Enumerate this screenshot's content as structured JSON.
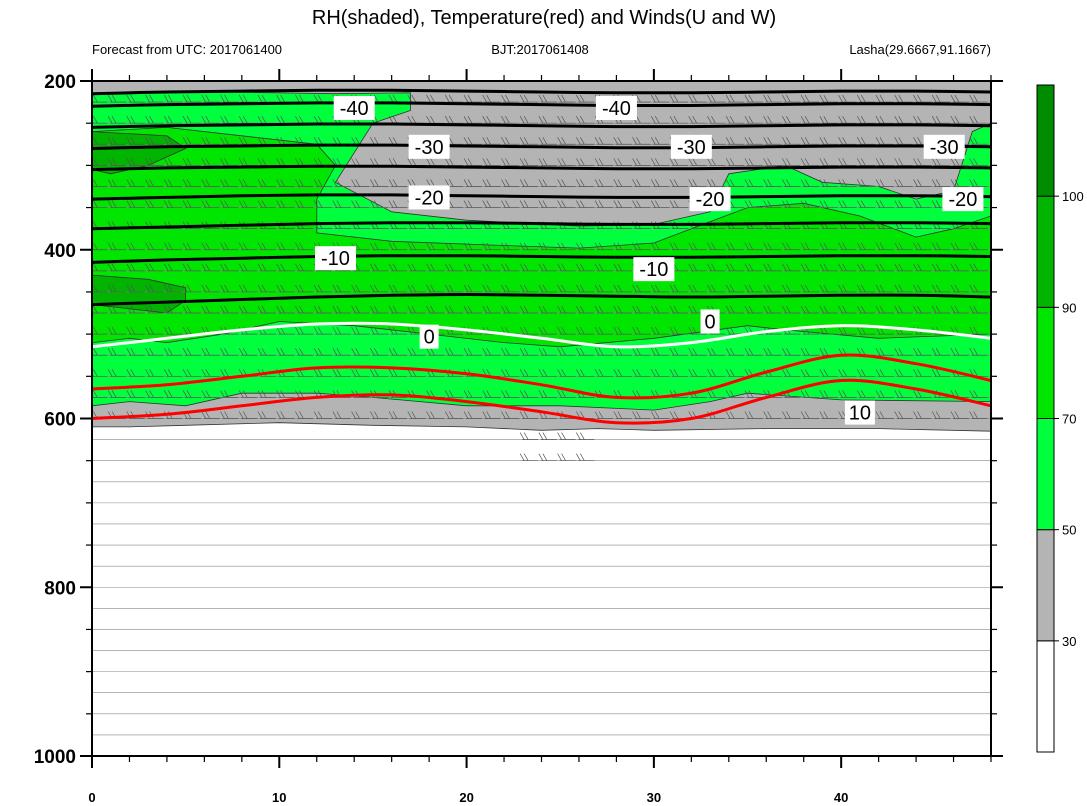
{
  "chart_data": {
    "type": "contour",
    "title": "RH(shaded), Temperature(red) and Winds(U and W)",
    "header_left": "Forecast from UTC: 2017061400",
    "header_center": "BJT:2017061408",
    "header_right": "Lasha(29.6667,91.1667)",
    "x_axis": {
      "range": [
        0,
        48
      ],
      "ticks": [
        "0",
        "10",
        "20",
        "30",
        "40"
      ]
    },
    "y_axis": {
      "range": [
        200,
        1000
      ],
      "reversed": true,
      "ticks": [
        "200",
        "400",
        "600",
        "800",
        "1000"
      ]
    },
    "colorbar": {
      "levels": [
        "30",
        "50",
        "70",
        "90",
        "100"
      ],
      "colors": [
        "#ffffff",
        "#b4b4b4",
        "#00ff3c",
        "#00e600",
        "#00b400",
        "#008c00"
      ]
    },
    "rh_regions": [
      {
        "color": "#b4b4b4",
        "points": [
          [
            0,
            200
          ],
          [
            48,
            200
          ],
          [
            48,
            615
          ],
          [
            42,
            612
          ],
          [
            36,
            612
          ],
          [
            30,
            614
          ],
          [
            27,
            612
          ],
          [
            24,
            614
          ],
          [
            20,
            610
          ],
          [
            15,
            608
          ],
          [
            10,
            605
          ],
          [
            5,
            608
          ],
          [
            2,
            610
          ],
          [
            0,
            610
          ]
        ]
      },
      {
        "color": "#00ff3c",
        "points": [
          [
            0,
            215
          ],
          [
            7,
            213
          ],
          [
            13,
            215
          ],
          [
            17,
            214
          ],
          [
            17,
            235
          ],
          [
            15,
            250
          ],
          [
            13,
            320
          ],
          [
            16,
            355
          ],
          [
            20,
            365
          ],
          [
            26,
            372
          ],
          [
            30,
            370
          ],
          [
            33,
            355
          ],
          [
            34,
            310
          ],
          [
            37,
            300
          ],
          [
            39,
            320
          ],
          [
            42,
            325
          ],
          [
            44,
            340
          ],
          [
            46,
            330
          ],
          [
            47,
            260
          ],
          [
            48,
            250
          ],
          [
            48,
            580
          ],
          [
            40,
            578
          ],
          [
            35,
            570
          ],
          [
            33,
            580
          ],
          [
            30,
            590
          ],
          [
            25,
            585
          ],
          [
            20,
            585
          ],
          [
            15,
            575
          ],
          [
            12,
            570
          ],
          [
            8,
            570
          ],
          [
            5,
            585
          ],
          [
            2,
            580
          ],
          [
            0,
            585
          ]
        ]
      },
      {
        "color": "#00e600",
        "points": [
          [
            0,
            260
          ],
          [
            4,
            255
          ],
          [
            8,
            265
          ],
          [
            12,
            275
          ],
          [
            13,
            300
          ],
          [
            12,
            340
          ],
          [
            12,
            380
          ],
          [
            16,
            390
          ],
          [
            22,
            395
          ],
          [
            26,
            398
          ],
          [
            30,
            392
          ],
          [
            32,
            375
          ],
          [
            35,
            350
          ],
          [
            38,
            345
          ],
          [
            41,
            360
          ],
          [
            44,
            385
          ],
          [
            46,
            375
          ],
          [
            48,
            360
          ],
          [
            48,
            500
          ],
          [
            42,
            505
          ],
          [
            37,
            495
          ],
          [
            35,
            490
          ],
          [
            30,
            505
          ],
          [
            25,
            515
          ],
          [
            22,
            510
          ],
          [
            18,
            500
          ],
          [
            14,
            490
          ],
          [
            10,
            485
          ],
          [
            7,
            500
          ],
          [
            4,
            510
          ],
          [
            2,
            505
          ],
          [
            0,
            510
          ]
        ]
      },
      {
        "color": "#00b400",
        "points": [
          [
            0,
            260
          ],
          [
            4,
            265
          ],
          [
            5,
            280
          ],
          [
            3,
            300
          ],
          [
            1,
            310
          ],
          [
            0,
            305
          ]
        ]
      },
      {
        "color": "#00b400",
        "points": [
          [
            0,
            430
          ],
          [
            3,
            435
          ],
          [
            5,
            445
          ],
          [
            5,
            460
          ],
          [
            4,
            475
          ],
          [
            2,
            470
          ],
          [
            0,
            465
          ]
        ]
      }
    ],
    "isotherms": [
      {
        "label": "-40",
        "color": "#000000",
        "y": [
          215,
          213,
          212,
          211,
          211,
          212,
          213,
          214,
          214,
          213,
          212,
          212,
          213
        ]
      },
      {
        "label": "-40",
        "color": "#000000",
        "y": [
          230,
          228,
          227,
          226,
          226,
          227,
          228,
          229,
          229,
          228,
          227,
          227,
          228
        ]
      },
      {
        "label": "-30",
        "color": "#000000",
        "y": [
          255,
          253,
          252,
          251,
          251,
          252,
          253,
          254,
          254,
          253,
          252,
          252,
          253
        ]
      },
      {
        "label": "-30",
        "color": "#000000",
        "y": [
          280,
          278,
          277,
          276,
          276,
          277,
          278,
          279,
          279,
          278,
          277,
          277,
          278
        ]
      },
      {
        "label": "-20",
        "color": "#000000",
        "y": [
          305,
          303,
          302,
          301,
          301,
          302,
          303,
          304,
          304,
          303,
          302,
          302,
          303
        ]
      },
      {
        "label": "-20",
        "color": "#000000",
        "y": [
          340,
          338,
          336,
          335,
          335,
          336,
          337,
          338,
          338,
          337,
          336,
          336,
          337
        ]
      },
      {
        "label": "-10",
        "color": "#000000",
        "y": [
          375,
          373,
          371,
          369,
          368,
          368,
          369,
          370,
          370,
          369,
          368,
          368,
          369
        ]
      },
      {
        "label": "-10",
        "color": "#000000",
        "y": [
          415,
          412,
          410,
          408,
          407,
          407,
          408,
          409,
          409,
          408,
          407,
          407,
          408
        ]
      },
      {
        "label": "-10",
        "color": "#000000",
        "y": [
          465,
          462,
          459,
          456,
          454,
          453,
          454,
          455,
          456,
          455,
          454,
          454,
          456
        ]
      },
      {
        "label": "0",
        "color": "#ffffff",
        "y": [
          515,
          505,
          495,
          488,
          488,
          495,
          505,
          515,
          510,
          497,
          490,
          495,
          505
        ]
      },
      {
        "label": "",
        "color": "#ff0000",
        "y": [
          565,
          560,
          550,
          540,
          540,
          547,
          560,
          575,
          570,
          545,
          525,
          535,
          555
        ]
      },
      {
        "label": "10",
        "color": "#ff0000",
        "y": [
          600,
          595,
          585,
          575,
          572,
          580,
          592,
          605,
          600,
          575,
          555,
          565,
          585
        ]
      }
    ],
    "contour_labels": [
      {
        "text": "-40",
        "x": 14,
        "y": 232
      },
      {
        "text": "-40",
        "x": 28,
        "y": 232
      },
      {
        "text": "-30",
        "x": 18,
        "y": 278
      },
      {
        "text": "-30",
        "x": 32,
        "y": 278
      },
      {
        "text": "-30",
        "x": 45.5,
        "y": 278
      },
      {
        "text": "-20",
        "x": 18,
        "y": 338
      },
      {
        "text": "-20",
        "x": 33,
        "y": 340
      },
      {
        "text": "-20",
        "x": 46.5,
        "y": 340
      },
      {
        "text": "-10",
        "x": 13,
        "y": 410
      },
      {
        "text": "-10",
        "x": 30,
        "y": 423
      },
      {
        "text": "0",
        "x": 18,
        "y": 503
      },
      {
        "text": "0",
        "x": 33,
        "y": 485
      },
      {
        "text": "10",
        "x": 41,
        "y": 593
      }
    ]
  }
}
